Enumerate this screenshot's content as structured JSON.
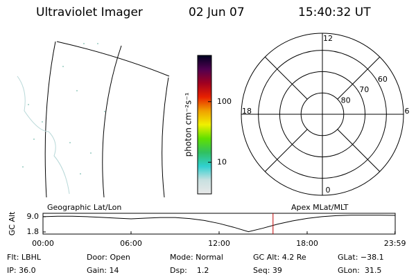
{
  "header": {
    "instrument": "Ultraviolet Imager",
    "date": "02 Jun 07",
    "time": "15:40:32 UT"
  },
  "panel_labels": [
    "Geographic Lat/Lon",
    "Apex MLat/MLT"
  ],
  "chart_data": [
    {
      "type": "colorbar",
      "label": "photon cm⁻²s⁻¹",
      "log_scale": true,
      "ylim": [
        3,
        580
      ],
      "yticks": [
        10,
        100
      ],
      "colors": [
        "#e8e8e8",
        "#c8e0e0",
        "#30d0d0",
        "#30c060",
        "#60e000",
        "#f0f000",
        "#f0a000",
        "#e82000",
        "#a00020",
        "#500050",
        "#000020"
      ]
    },
    {
      "type": "polar",
      "rlim": [
        90,
        52
      ],
      "rings": [
        80,
        70,
        60
      ],
      "thetaticks": [
        12,
        6,
        0,
        18
      ],
      "color": "#000000"
    },
    {
      "type": "line",
      "ylabel": "GC Alt",
      "ylim": [
        0.8,
        10.6
      ],
      "yticks": [
        {
          "value": 9.0,
          "label": "9.0"
        },
        1.8
      ],
      "xlim": [
        0,
        24
      ],
      "xticks": [
        {
          "value": 0,
          "label": "00:00"
        },
        {
          "value": 6,
          "label": "06:00"
        },
        {
          "value": 12,
          "label": "12:00"
        },
        {
          "value": 18,
          "label": "18:00"
        },
        {
          "value": 23.983,
          "label": "23:59"
        }
      ],
      "x": [
        0,
        1,
        2,
        3,
        4,
        5,
        6,
        7,
        8,
        9,
        10,
        11,
        12,
        13,
        14,
        15,
        16,
        17,
        18,
        19,
        20,
        21,
        22,
        23,
        24
      ],
      "values": [
        9.0,
        9.2,
        9.2,
        9.0,
        8.7,
        8.3,
        8.0,
        8.3,
        8.6,
        8.6,
        8.1,
        7.2,
        5.8,
        4.0,
        1.9,
        3.6,
        5.5,
        7.0,
        8.2,
        9.0,
        9.5,
        9.7,
        9.7,
        9.7,
        9.6
      ],
      "color": "#000000",
      "marker_x": 15.675,
      "marker_color": "#c00000"
    }
  ],
  "footer": [
    [
      "Flt: LBHL",
      "Door: Open",
      "Mode: Normal",
      "GC Alt: 4.2 Re",
      "GLat: −38.1"
    ],
    [
      "IP: 36.0",
      "Gain: 14",
      "Dsp:    1.2",
      "Seq: 39",
      "GLon:  31.5"
    ]
  ]
}
